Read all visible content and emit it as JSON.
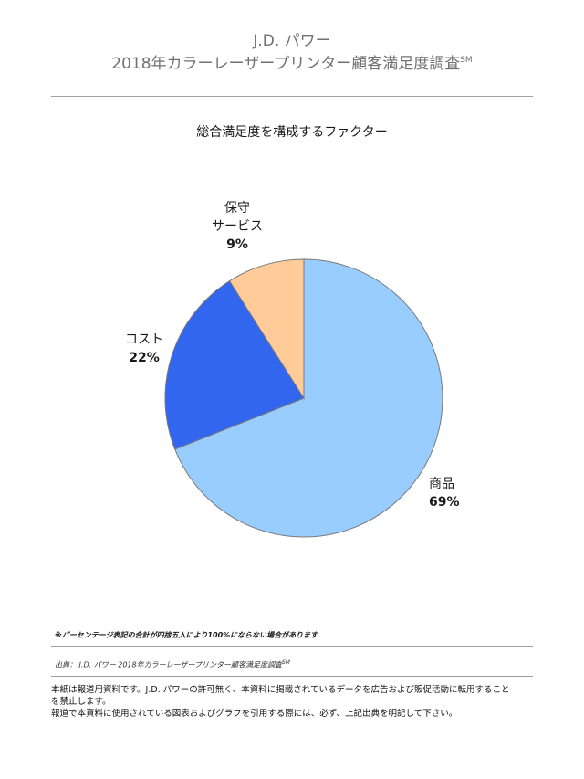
{
  "header": {
    "line1": "J.D. パワー",
    "line2": "2018年カラーレーザープリンター顧客満足度調査",
    "line2_mark": "SM"
  },
  "chart_data": {
    "type": "pie",
    "title": "総合満足度を構成するファクター",
    "slices": [
      {
        "label_lines": [
          "商品"
        ],
        "value": 69,
        "pct_label": "69%",
        "color": "#99ccff"
      },
      {
        "label_lines": [
          "コスト"
        ],
        "value": 22,
        "pct_label": "22%",
        "color": "#3366ee"
      },
      {
        "label_lines": [
          "保守",
          "サービス"
        ],
        "value": 9,
        "pct_label": "9%",
        "color": "#ffcc99"
      }
    ]
  },
  "footer": {
    "note": "※パーセンテージ表記の合計が四捨五入により100%にならない場合があります",
    "source": "出典： J.D. パワー 2018年カラーレーザープリンター顧客満足度調査",
    "source_mark": "SM",
    "disclaimer_line1": "本紙は報道用資料です。J.D. パワーの許可無く、本資料に掲載されているデータを広告および販促活動に転用すること",
    "disclaimer_line2": "を禁止します。",
    "disclaimer_line3": "報道で本資料に使用されている図表およびグラフを引用する際には、必ず、上記出典を明記して下さい。"
  }
}
